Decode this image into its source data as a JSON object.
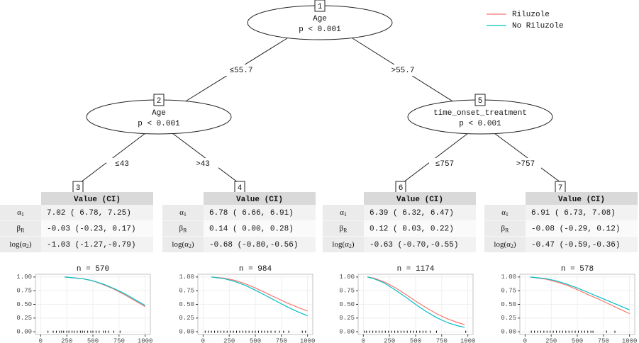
{
  "legend": {
    "corner": "top-right",
    "entries": [
      {
        "name": "Riluzole",
        "color": "#F8766D"
      },
      {
        "name": "No Riluzole",
        "color": "#00BFC4"
      }
    ]
  },
  "inner_nodes": [
    {
      "id": "1",
      "lines": [
        "Age",
        "p < 0.001"
      ]
    },
    {
      "id": "2",
      "lines": [
        "Age",
        "p < 0.001"
      ]
    },
    {
      "id": "5",
      "lines": [
        "time_onset_treatment",
        "p < 0.001"
      ]
    }
  ],
  "edges": [
    {
      "label": "≤55.7"
    },
    {
      "label": ">55.7"
    },
    {
      "label": "≤43"
    },
    {
      "label": ">43"
    },
    {
      "label": "≤757"
    },
    {
      "label": ">757"
    }
  ],
  "table_header": "Value (CI)",
  "row_labels": [
    {
      "base": "α",
      "sub": "1"
    },
    {
      "base": "β",
      "sub": "R"
    },
    {
      "base": "log(α",
      "sub": "2",
      "after": ")"
    }
  ],
  "terminal_nodes": [
    {
      "id": "3",
      "values": [
        "7.02 ( 6.78, 7.25)",
        "-0.03 (-0.23, 0.17)",
        "-1.03 (-1.27,-0.79)"
      ],
      "plot": {
        "type": "line",
        "title": "n = 570",
        "grid": true,
        "xlim": [
          -50,
          1050
        ],
        "ylim": [
          -0.05,
          1.05
        ],
        "xticks": [
          0,
          250,
          500,
          750,
          1000
        ],
        "yticks": [
          {
            "value": 0,
            "label": "0.00"
          },
          {
            "value": 0.25,
            "label": "0.25"
          },
          {
            "value": 0.5,
            "label": "0.50"
          },
          {
            "value": 0.75,
            "label": "0.75"
          },
          {
            "value": 1,
            "label": "1.00"
          }
        ],
        "x": [
          230,
          400,
          500,
          600,
          700,
          800,
          900,
          1000
        ],
        "series": [
          {
            "values": [
              1.0,
              0.97,
              0.93,
              0.86,
              0.78,
              0.68,
              0.57,
              0.46
            ]
          },
          {
            "values": [
              1.0,
              0.97,
              0.93,
              0.87,
              0.79,
              0.7,
              0.59,
              0.48
            ]
          }
        ],
        "rug": [
          70,
          120,
          150,
          180,
          200,
          220,
          250,
          270,
          300,
          320,
          350,
          380,
          400,
          420,
          450,
          480,
          500,
          530,
          560,
          600,
          620,
          650,
          700,
          760
        ]
      }
    },
    {
      "id": "4",
      "values": [
        "6.78 ( 6.66, 6.91)",
        "0.14 ( 0.00, 0.28)",
        "-0.68 (-0.80,-0.56)"
      ],
      "plot": {
        "type": "line",
        "title": "n = 984",
        "grid": true,
        "xlim": [
          -50,
          1050
        ],
        "ylim": [
          -0.05,
          1.05
        ],
        "xticks": [
          0,
          250,
          500,
          750,
          1000
        ],
        "yticks": [
          {
            "value": 0,
            "label": "0.00"
          },
          {
            "value": 0.25,
            "label": "0.25"
          },
          {
            "value": 0.5,
            "label": "0.50"
          },
          {
            "value": 0.75,
            "label": "0.75"
          },
          {
            "value": 1,
            "label": "1.00"
          }
        ],
        "x": [
          80,
          200,
          300,
          400,
          500,
          600,
          700,
          800,
          900,
          1000
        ],
        "series": [
          {
            "values": [
              1.0,
              0.98,
              0.94,
              0.88,
              0.8,
              0.71,
              0.62,
              0.53,
              0.45,
              0.38
            ]
          },
          {
            "values": [
              1.0,
              0.97,
              0.92,
              0.85,
              0.76,
              0.66,
              0.56,
              0.46,
              0.37,
              0.29
            ]
          }
        ],
        "rug": [
          20,
          50,
          80,
          110,
          140,
          170,
          200,
          230,
          260,
          290,
          320,
          350,
          380,
          410,
          440,
          470,
          500,
          530,
          560,
          590,
          620,
          650,
          690,
          730,
          770,
          820,
          950,
          980
        ]
      }
    },
    {
      "id": "6",
      "values": [
        "6.39 ( 6.32, 6.47)",
        "0.12 ( 0.03, 0.22)",
        "-0.63 (-0.70,-0.55)"
      ],
      "plot": {
        "type": "line",
        "title": "n = 1174",
        "grid": true,
        "xlim": [
          -50,
          1050
        ],
        "ylim": [
          -0.05,
          1.05
        ],
        "xticks": [
          0,
          250,
          500,
          750,
          1000
        ],
        "yticks": [
          {
            "value": 0,
            "label": "0.00"
          },
          {
            "value": 0.25,
            "label": "0.25"
          },
          {
            "value": 0.5,
            "label": "0.50"
          },
          {
            "value": 0.75,
            "label": "0.75"
          },
          {
            "value": 1,
            "label": "1.00"
          }
        ],
        "x": [
          40,
          100,
          200,
          300,
          400,
          500,
          600,
          700,
          800,
          900,
          970
        ],
        "series": [
          {
            "values": [
              1.0,
              0.98,
              0.91,
              0.81,
              0.69,
              0.56,
              0.44,
              0.33,
              0.24,
              0.17,
              0.13
            ]
          },
          {
            "values": [
              1.0,
              0.97,
              0.89,
              0.77,
              0.64,
              0.5,
              0.37,
              0.26,
              0.17,
              0.11,
              0.08
            ]
          }
        ],
        "rug": [
          10,
          30,
          60,
          90,
          120,
          150,
          180,
          210,
          240,
          270,
          300,
          330,
          360,
          390,
          420,
          450,
          480,
          510,
          540,
          570,
          600,
          640,
          700,
          980
        ]
      }
    },
    {
      "id": "7",
      "values": [
        "6.91 ( 6.73, 7.08)",
        "-0.08 (-0.29, 0.12)",
        "-0.47 (-0.59,-0.36)"
      ],
      "plot": {
        "type": "line",
        "title": "n = 578",
        "grid": true,
        "xlim": [
          -50,
          1050
        ],
        "ylim": [
          -0.05,
          1.05
        ],
        "xticks": [
          0,
          250,
          500,
          750,
          1000
        ],
        "yticks": [
          {
            "value": 0,
            "label": "0.00"
          },
          {
            "value": 0.25,
            "label": "0.25"
          },
          {
            "value": 0.5,
            "label": "0.50"
          },
          {
            "value": 0.75,
            "label": "0.75"
          },
          {
            "value": 1,
            "label": "1.00"
          }
        ],
        "x": [
          50,
          200,
          300,
          400,
          500,
          600,
          700,
          800,
          900,
          1000
        ],
        "series": [
          {
            "values": [
              1.0,
              0.96,
              0.91,
              0.85,
              0.77,
              0.68,
              0.6,
              0.51,
              0.42,
              0.33
            ]
          },
          {
            "values": [
              1.0,
              0.97,
              0.93,
              0.87,
              0.8,
              0.72,
              0.64,
              0.56,
              0.48,
              0.4
            ]
          }
        ],
        "rug": [
          60,
          90,
          120,
          150,
          180,
          210,
          240,
          270,
          300,
          330,
          360,
          390,
          420,
          450,
          480,
          510,
          540,
          570,
          600,
          630,
          650,
          780,
          860
        ]
      }
    }
  ]
}
